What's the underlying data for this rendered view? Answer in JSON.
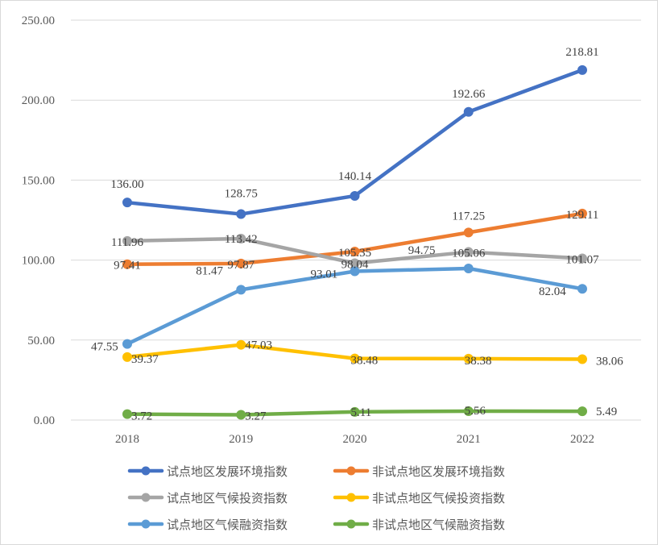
{
  "chart_data": {
    "type": "line",
    "title": "",
    "xlabel": "",
    "ylabel": "",
    "categories": [
      "2018",
      "2019",
      "2020",
      "2021",
      "2022"
    ],
    "ylim": [
      0,
      250
    ],
    "yticks": [
      "0.00",
      "50.00",
      "100.00",
      "150.00",
      "200.00",
      "250.00"
    ],
    "grid": true,
    "legend_position": "bottom",
    "series": [
      {
        "name": "试点地区发展环境指数",
        "color": "#4472C4",
        "values": [
          136.0,
          128.75,
          140.14,
          192.66,
          218.81
        ],
        "labels": [
          "136.00",
          "128.75",
          "140.14",
          "192.66",
          "218.81"
        ]
      },
      {
        "name": "非试点地区发展环境指数",
        "color": "#ED7D31",
        "values": [
          97.41,
          97.87,
          105.35,
          117.25,
          129.11
        ],
        "labels": [
          "97.41",
          "97.87",
          "105.35",
          "117.25",
          "129.11"
        ]
      },
      {
        "name": "试点地区气候投资指数",
        "color": "#A5A5A5",
        "values": [
          111.96,
          113.42,
          98.04,
          105.06,
          101.07
        ],
        "labels": [
          "111.96",
          "113.42",
          "98.04",
          "105.06",
          "101.07"
        ]
      },
      {
        "name": "非试点地区气候投资指数",
        "color": "#FFC000",
        "values": [
          39.37,
          47.03,
          38.48,
          38.38,
          38.06
        ],
        "labels": [
          "39.37",
          "47.03",
          "38.48",
          "38.38",
          "38.06"
        ]
      },
      {
        "name": "试点地区气候融资指数",
        "color": "#5B9BD5",
        "values": [
          47.55,
          81.47,
          93.01,
          94.75,
          82.04
        ],
        "labels": [
          "47.55",
          "81.47",
          "93.01",
          "94.75",
          "82.04"
        ]
      },
      {
        "name": "非试点地区气候融资指数",
        "color": "#70AD47",
        "values": [
          3.72,
          3.27,
          5.11,
          5.56,
          5.49
        ],
        "labels": [
          "3.72",
          "3.27",
          "5.11",
          "5.56",
          "5.49"
        ]
      }
    ]
  }
}
